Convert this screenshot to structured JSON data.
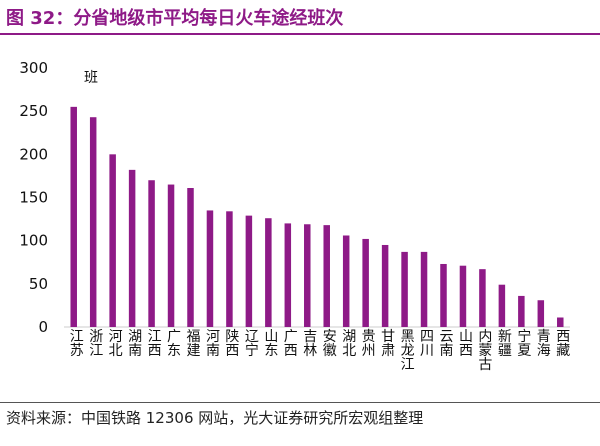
{
  "header": {
    "title": "图 32：分省地级市平均每日火车途经班次"
  },
  "footer": {
    "source": "资料来源：中国铁路 12306 网站，光大证券研究所宏观组整理"
  },
  "colors": {
    "accent": "#8E1A87",
    "bar": "#8E1A87"
  },
  "chart_data": {
    "type": "bar",
    "unit_label": "班",
    "categories": [
      "江苏",
      "浙江",
      "河北",
      "湖南",
      "江西",
      "广东",
      "福建",
      "河南",
      "陕西",
      "辽宁",
      "山东",
      "广西",
      "吉林",
      "安徽",
      "湖北",
      "贵州",
      "甘肃",
      "黑龙江",
      "四川",
      "云南",
      "山西",
      "内蒙古",
      "新疆",
      "宁夏",
      "青海",
      "西藏"
    ],
    "values": [
      255,
      243,
      200,
      182,
      170,
      165,
      161,
      135,
      134,
      129,
      126,
      120,
      119,
      118,
      106,
      102,
      95,
      87,
      87,
      73,
      71,
      67,
      49,
      36,
      31,
      11
    ],
    "yticks": [
      0,
      50,
      100,
      150,
      200,
      250,
      300
    ],
    "ylim": [
      0,
      300
    ],
    "grid": false,
    "legend": "none"
  }
}
